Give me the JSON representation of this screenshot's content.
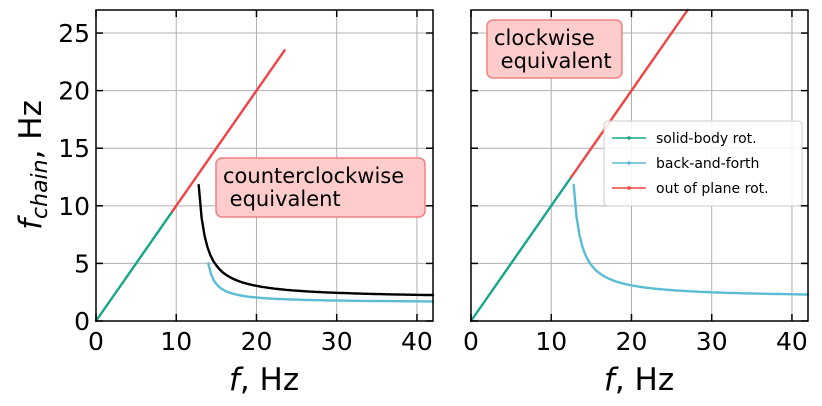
{
  "chart_data": [
    {
      "type": "line",
      "panel": "left",
      "xlabel_italic": "f",
      "xlabel_rest": ", Hz",
      "ylabel_italic": "f",
      "ylabel_sub": "chain",
      "ylabel_rest": ", Hz",
      "xlim": [
        0,
        42
      ],
      "ylim": [
        0,
        27
      ],
      "xticks": [
        "0",
        "10",
        "20",
        "30",
        "40"
      ],
      "yticks": [
        "0",
        "5",
        "10",
        "15",
        "20",
        "25"
      ],
      "grid": true,
      "annotation": [
        "counterclockwise",
        " equivalent"
      ],
      "series": [
        {
          "color": "#17a589",
          "points": [
            [
              0,
              0
            ],
            [
              9.5,
              9.5
            ]
          ]
        },
        {
          "color": "#ee4444",
          "points": [
            [
              9.5,
              9.5
            ],
            [
              23.5,
              23.5
            ]
          ]
        },
        {
          "color": "#000000",
          "hyperbola": {
            "x0": 12.8,
            "x1": 42,
            "y0": 11.8,
            "y1": 2.25
          }
        },
        {
          "color": "#5bbcd6",
          "hyperbola": {
            "x0": 14.0,
            "x1": 42,
            "y0": 5.0,
            "y1": 1.7
          }
        }
      ]
    },
    {
      "type": "line",
      "panel": "right",
      "xlabel_italic": "f",
      "xlabel_rest": ", Hz",
      "xlim": [
        0,
        42
      ],
      "ylim": [
        0,
        27
      ],
      "xticks": [
        "0",
        "10",
        "20",
        "30",
        "40"
      ],
      "grid": true,
      "annotation": [
        "clockwise",
        " equivalent"
      ],
      "legend": [
        "solid-body rot.",
        "back-and-forth",
        "out of plane rot."
      ],
      "legend_colors": [
        "#17a589",
        "#5bbcd6",
        "#ee4444"
      ],
      "series": [
        {
          "color": "#17a589",
          "points": [
            [
              0,
              0
            ],
            [
              12.5,
              12.5
            ]
          ]
        },
        {
          "color": "#ee4444",
          "points": [
            [
              12.5,
              12.5
            ],
            [
              27,
              27
            ]
          ]
        },
        {
          "color": "#5bbcd6",
          "hyperbola": {
            "x0": 12.8,
            "x1": 42,
            "y0": 11.8,
            "y1": 2.3
          }
        }
      ]
    }
  ]
}
